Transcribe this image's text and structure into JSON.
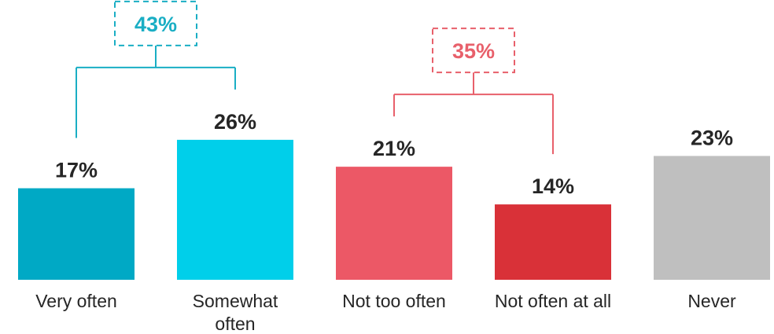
{
  "chart_data": {
    "type": "bar",
    "categories": [
      [
        "Very often"
      ],
      [
        "Somewhat",
        "often"
      ],
      [
        "Not too often"
      ],
      [
        "Not often at all"
      ],
      [
        "Never"
      ]
    ],
    "values": [
      17,
      26,
      21,
      14,
      23
    ],
    "value_labels": [
      "17%",
      "26%",
      "21%",
      "14%",
      "23%"
    ],
    "colors": [
      "#00A9C5",
      "#00CFEA",
      "#EC5866",
      "#D93138",
      "#BFBFBF"
    ],
    "groups": [
      {
        "label": "43%",
        "members": [
          0,
          1
        ],
        "color": "#1AAEC4"
      },
      {
        "label": "35%",
        "members": [
          2,
          3
        ],
        "color": "#E8606B"
      }
    ],
    "ylim": [
      0,
      30
    ],
    "grid": false,
    "xlabel": "",
    "ylabel": ""
  }
}
